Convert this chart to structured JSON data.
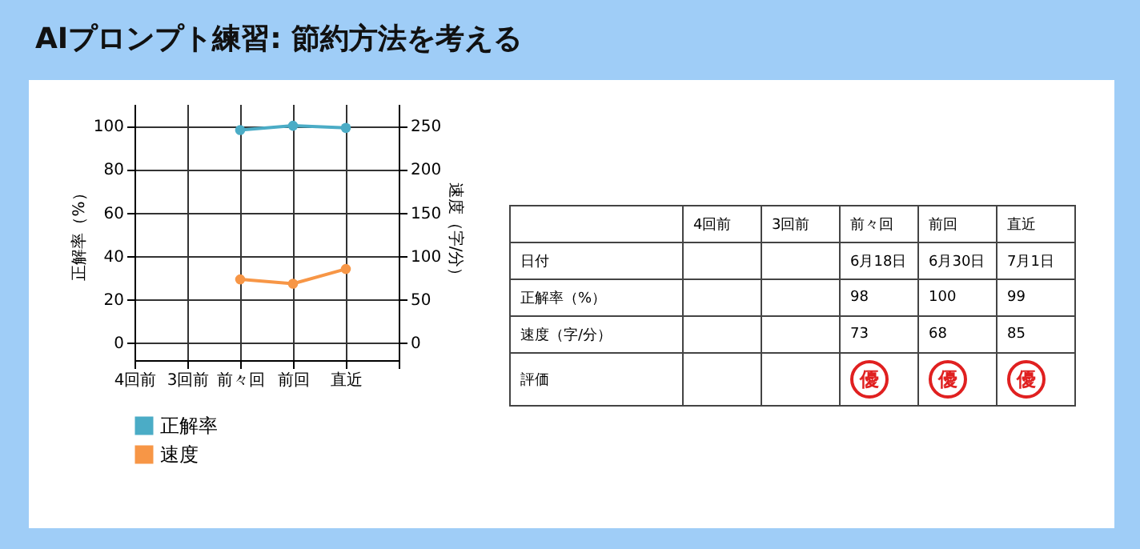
{
  "chart_data": [
    {
      "type": "line",
      "title": "AIプロンプト練習: 節約方法を考える",
      "categories": [
        "4回前",
        "3回前",
        "前々回",
        "前回",
        "直近",
        null
      ],
      "ylabel": "正解率（%）",
      "y2label": "速度（字/分）",
      "series": [
        {
          "name": "正解率",
          "color": "#4bacc6",
          "values": [
            null,
            null,
            98,
            100,
            99,
            null
          ]
        },
        {
          "name": "速度",
          "color": "#f79646",
          "axis": "y2",
          "values": [
            null,
            null,
            73,
            68,
            85,
            null
          ]
        }
      ],
      "ylim": [
        -8,
        110
      ],
      "yticks": [
        0,
        20,
        40,
        60,
        80,
        100
      ],
      "y2lim": [
        -20,
        275
      ],
      "y2ticks": [
        0,
        50,
        100,
        150,
        200,
        250
      ],
      "grid": true,
      "marker": "circle",
      "legend": "bottom"
    },
    {
      "type": "other",
      "categories": [
        null,
        "4回前",
        "3回前",
        "前々回",
        "前回",
        "直近"
      ],
      "y_categories": [
        "日付",
        "正解率（%）",
        "速度（字/分）",
        "評価"
      ],
      "cell_labels": [
        [
          null,
          null,
          "6月18日",
          "6月30日",
          "7月1日"
        ],
        [
          null,
          null,
          "98",
          "100",
          "99"
        ],
        [
          null,
          null,
          "73",
          "68",
          "85"
        ],
        [
          null,
          null,
          "優",
          "優",
          "優"
        ]
      ]
    }
  ]
}
